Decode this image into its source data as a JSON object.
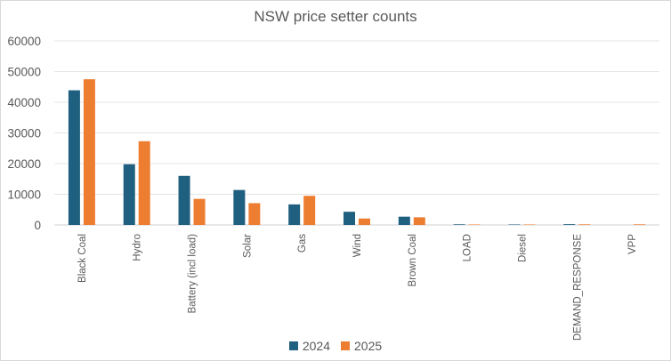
{
  "chart_data": {
    "type": "bar",
    "title": "NSW price setter counts",
    "xlabel": "",
    "ylabel": "",
    "ylim": [
      0,
      60000
    ],
    "yticks": [
      0,
      10000,
      20000,
      30000,
      40000,
      50000,
      60000
    ],
    "ytick_labels": [
      "0",
      "10000",
      "20000",
      "30000",
      "40000",
      "50000",
      "60000"
    ],
    "grid": true,
    "legend_position": "bottom",
    "categories": [
      "Black Coal",
      "Hydro",
      "Battery (incl load)",
      "Solar",
      "Gas",
      "Wind",
      "Brown Coal",
      "LOAD",
      "Diesel",
      "DEMAND_RESPONSE",
      "VPP"
    ],
    "series": [
      {
        "name": "2024",
        "color": "#1f5f7f",
        "values": [
          43900,
          19800,
          16000,
          11400,
          6700,
          4300,
          2700,
          200,
          150,
          250,
          0
        ]
      },
      {
        "name": "2025",
        "color": "#ed7d31",
        "values": [
          47500,
          27300,
          8500,
          7100,
          9500,
          2100,
          2500,
          150,
          150,
          200,
          200
        ]
      }
    ]
  }
}
